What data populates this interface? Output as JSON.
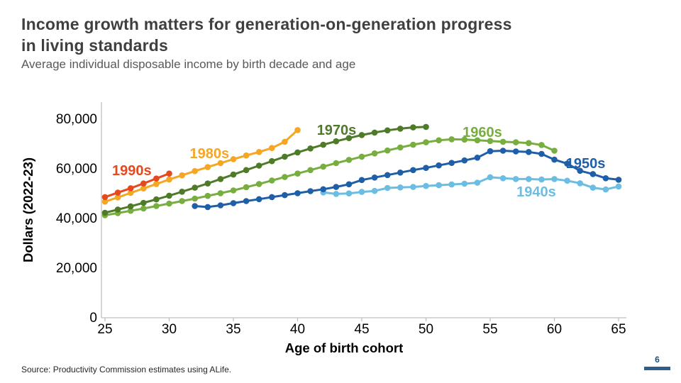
{
  "slide": {
    "title_lines": [
      "Income growth matters for generation-on-generation progress",
      "in living standards"
    ],
    "subtitle": "Average individual disposable income by birth decade and age",
    "source": "Source: Productivity Commission estimates using ALife.",
    "page_number": "6",
    "title_color": "#3f3f3f",
    "subtitle_color": "#595959",
    "page_accent_color": "#2e5e8e"
  },
  "chart_data": {
    "type": "line",
    "title": "Average individual disposable income by birth decade and age",
    "xlabel": "Age of birth cohort",
    "ylabel": "Dollars (2022-23)",
    "xlim": [
      25,
      65
    ],
    "ylim": [
      0,
      80000
    ],
    "x_ticks": [
      25,
      30,
      35,
      40,
      45,
      50,
      55,
      60,
      65
    ],
    "y_ticks": [
      0,
      20000,
      40000,
      60000,
      80000
    ],
    "grid": false,
    "legend_position": "inline-series-labels",
    "axis_color": "#bfbfbf",
    "series": [
      {
        "name": "1940s",
        "color": "#6cbde2",
        "start_age": 42,
        "label": {
          "text": "1940s",
          "age": 57.05,
          "value": 48600
        },
        "values": [
          50200,
          49600,
          49800,
          50400,
          50800,
          52000,
          52200,
          52400,
          52800,
          53100,
          53400,
          53700,
          54100,
          56300,
          55900,
          55600,
          55600,
          55400,
          55600,
          54900,
          53900,
          52100,
          51400,
          52600
        ]
      },
      {
        "name": "1950s",
        "color": "#1f5fa7",
        "start_age": 32,
        "label": {
          "text": "1950s",
          "age": 60.9,
          "value": 60000
        },
        "values": [
          44700,
          44300,
          45000,
          45900,
          46700,
          47500,
          48300,
          49100,
          49900,
          50700,
          51500,
          52400,
          53500,
          55200,
          56200,
          57200,
          58200,
          59200,
          60100,
          61100,
          62100,
          63100,
          64200,
          66800,
          67000,
          66700,
          66500,
          65700,
          63400,
          61800,
          58900,
          57600,
          55900,
          55300
        ]
      },
      {
        "name": "1960s",
        "color": "#78ad3f",
        "start_age": 25,
        "label": {
          "text": "1960s",
          "age": 52.85,
          "value": 72600
        },
        "values": [
          41000,
          41900,
          42800,
          43700,
          44700,
          45700,
          46700,
          47700,
          48800,
          49900,
          51000,
          52300,
          53600,
          55000,
          56400,
          57800,
          59200,
          60600,
          62000,
          63300,
          64600,
          65900,
          67100,
          68300,
          69400,
          70400,
          71200,
          71600,
          71500,
          71200,
          70900,
          70600,
          70400,
          70100,
          69300,
          67000
        ]
      },
      {
        "name": "1970s",
        "color": "#4e7b27",
        "start_age": 25,
        "label": {
          "text": "1970s",
          "age": 41.5,
          "value": 73400
        },
        "values": [
          42000,
          43300,
          44600,
          46000,
          47400,
          48900,
          50500,
          52100,
          53800,
          55600,
          57400,
          59200,
          61000,
          62800,
          64600,
          66300,
          67900,
          69400,
          70800,
          72100,
          73300,
          74300,
          75200,
          75900,
          76400,
          76600
        ]
      },
      {
        "name": "1980s",
        "color": "#f5a723",
        "start_age": 25,
        "label": {
          "text": "1980s",
          "age": 31.6,
          "value": 64000
        },
        "values": [
          46500,
          48200,
          50000,
          51800,
          53600,
          55400,
          57100,
          58800,
          60400,
          62000,
          63600,
          65100,
          66500,
          68100,
          70600,
          75300
        ]
      },
      {
        "name": "1990s",
        "color": "#e5491d",
        "start_age": 25,
        "label": {
          "text": "1990s",
          "age": 25.55,
          "value": 57100
        },
        "values": [
          48300,
          50100,
          51900,
          53800,
          55800,
          57800
        ]
      }
    ]
  }
}
